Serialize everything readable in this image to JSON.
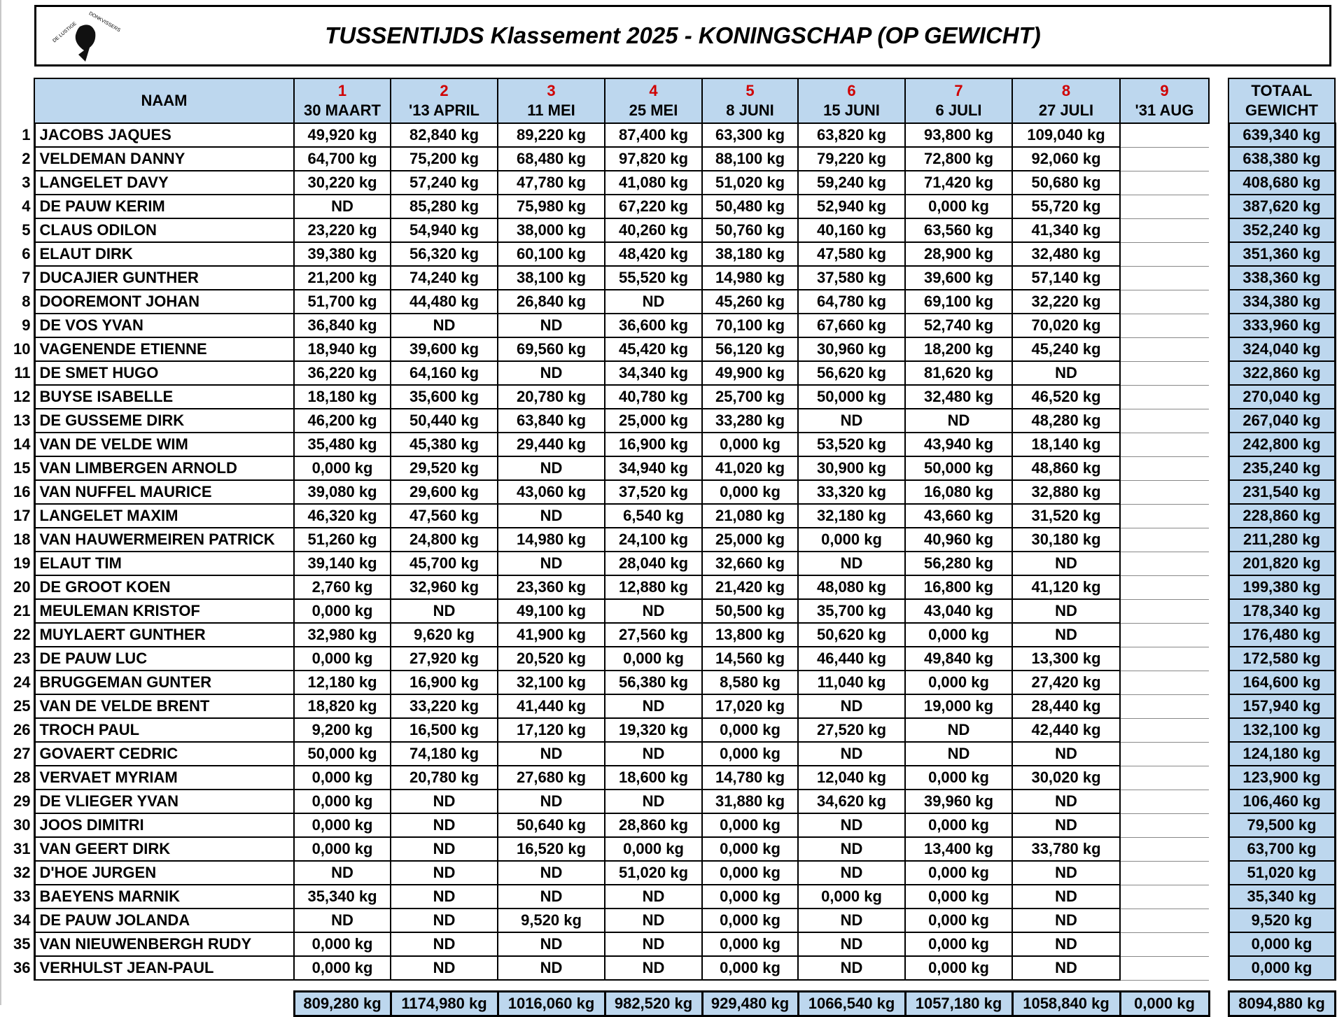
{
  "title": "TUSSENTIJDS Klassement 2025 - KONINGSCHAP (OP GEWICHT)",
  "logo_text": "DE LUSTIGE DONKVISSERS",
  "colors": {
    "header_bg": "#bdd7ee",
    "round_number": "#d00000"
  },
  "header": {
    "name": "NAAM",
    "rounds": [
      {
        "num": "1",
        "date": "30 MAART"
      },
      {
        "num": "2",
        "date": "'13 APRIL"
      },
      {
        "num": "3",
        "date": "11 MEI"
      },
      {
        "num": "4",
        "date": "25 MEI"
      },
      {
        "num": "5",
        "date": "8 JUNI"
      },
      {
        "num": "6",
        "date": "15 JUNI"
      },
      {
        "num": "7",
        "date": "6 JULI"
      },
      {
        "num": "8",
        "date": "27 JULI"
      },
      {
        "num": "9",
        "date": "'31 AUG"
      }
    ],
    "total_line1": "TOTAAL",
    "total_line2": "GEWICHT"
  },
  "rows": [
    [
      "1",
      "JACOBS JAQUES",
      "49,920 kg",
      "82,840 kg",
      "89,220 kg",
      "87,400 kg",
      "63,300 kg",
      "63,820 kg",
      "93,800 kg",
      "109,040 kg",
      "",
      "639,340 kg"
    ],
    [
      "2",
      "VELDEMAN DANNY",
      "64,700 kg",
      "75,200 kg",
      "68,480 kg",
      "97,820 kg",
      "88,100 kg",
      "79,220 kg",
      "72,800 kg",
      "92,060 kg",
      "",
      "638,380 kg"
    ],
    [
      "3",
      "LANGELET DAVY",
      "30,220 kg",
      "57,240 kg",
      "47,780 kg",
      "41,080 kg",
      "51,020 kg",
      "59,240 kg",
      "71,420 kg",
      "50,680 kg",
      "",
      "408,680 kg"
    ],
    [
      "4",
      "DE PAUW KERIM",
      "ND",
      "85,280 kg",
      "75,980 kg",
      "67,220 kg",
      "50,480 kg",
      "52,940 kg",
      "0,000 kg",
      "55,720 kg",
      "",
      "387,620 kg"
    ],
    [
      "5",
      "CLAUS ODILON",
      "23,220 kg",
      "54,940 kg",
      "38,000 kg",
      "40,260 kg",
      "50,760 kg",
      "40,160 kg",
      "63,560 kg",
      "41,340 kg",
      "",
      "352,240 kg"
    ],
    [
      "6",
      "ELAUT DIRK",
      "39,380 kg",
      "56,320 kg",
      "60,100 kg",
      "48,420 kg",
      "38,180 kg",
      "47,580 kg",
      "28,900 kg",
      "32,480 kg",
      "",
      "351,360 kg"
    ],
    [
      "7",
      "DUCAJIER GUNTHER",
      "21,200 kg",
      "74,240 kg",
      "38,100 kg",
      "55,520 kg",
      "14,980 kg",
      "37,580 kg",
      "39,600 kg",
      "57,140 kg",
      "",
      "338,360 kg"
    ],
    [
      "8",
      "DOOREMONT JOHAN",
      "51,700 kg",
      "44,480 kg",
      "26,840 kg",
      "ND",
      "45,260 kg",
      "64,780 kg",
      "69,100 kg",
      "32,220 kg",
      "",
      "334,380 kg"
    ],
    [
      "9",
      "DE VOS YVAN",
      "36,840 kg",
      "ND",
      "ND",
      "36,600 kg",
      "70,100 kg",
      "67,660 kg",
      "52,740 kg",
      "70,020 kg",
      "",
      "333,960 kg"
    ],
    [
      "10",
      "VAGENENDE ETIENNE",
      "18,940 kg",
      "39,600 kg",
      "69,560 kg",
      "45,420 kg",
      "56,120 kg",
      "30,960 kg",
      "18,200 kg",
      "45,240 kg",
      "",
      "324,040 kg"
    ],
    [
      "11",
      "DE SMET HUGO",
      "36,220 kg",
      "64,160 kg",
      "ND",
      "34,340 kg",
      "49,900 kg",
      "56,620 kg",
      "81,620 kg",
      "ND",
      "",
      "322,860 kg"
    ],
    [
      "12",
      "BUYSE ISABELLE",
      "18,180 kg",
      "35,600 kg",
      "20,780 kg",
      "40,780 kg",
      "25,700 kg",
      "50,000 kg",
      "32,480 kg",
      "46,520 kg",
      "",
      "270,040 kg"
    ],
    [
      "13",
      "DE GUSSEME DIRK",
      "46,200 kg",
      "50,440 kg",
      "63,840 kg",
      "25,000 kg",
      "33,280 kg",
      "ND",
      "ND",
      "48,280 kg",
      "",
      "267,040 kg"
    ],
    [
      "14",
      "VAN DE VELDE WIM",
      "35,480 kg",
      "45,380 kg",
      "29,440 kg",
      "16,900 kg",
      "0,000 kg",
      "53,520 kg",
      "43,940 kg",
      "18,140 kg",
      "",
      "242,800 kg"
    ],
    [
      "15",
      "VAN LIMBERGEN ARNOLD",
      "0,000 kg",
      "29,520 kg",
      "ND",
      "34,940 kg",
      "41,020 kg",
      "30,900 kg",
      "50,000 kg",
      "48,860 kg",
      "",
      "235,240 kg"
    ],
    [
      "16",
      "VAN NUFFEL MAURICE",
      "39,080 kg",
      "29,600 kg",
      "43,060 kg",
      "37,520 kg",
      "0,000 kg",
      "33,320 kg",
      "16,080 kg",
      "32,880 kg",
      "",
      "231,540 kg"
    ],
    [
      "17",
      "LANGELET MAXIM",
      "46,320 kg",
      "47,560 kg",
      "ND",
      "6,540 kg",
      "21,080 kg",
      "32,180 kg",
      "43,660 kg",
      "31,520 kg",
      "",
      "228,860 kg"
    ],
    [
      "18",
      "VAN HAUWERMEIREN PATRICK",
      "51,260 kg",
      "24,800 kg",
      "14,980 kg",
      "24,100 kg",
      "25,000 kg",
      "0,000 kg",
      "40,960 kg",
      "30,180 kg",
      "",
      "211,280 kg"
    ],
    [
      "19",
      "ELAUT TIM",
      "39,140 kg",
      "45,700 kg",
      "ND",
      "28,040 kg",
      "32,660 kg",
      "ND",
      "56,280 kg",
      "ND",
      "",
      "201,820 kg"
    ],
    [
      "20",
      "DE GROOT KOEN",
      "2,760 kg",
      "32,960 kg",
      "23,360 kg",
      "12,880 kg",
      "21,420 kg",
      "48,080 kg",
      "16,800 kg",
      "41,120 kg",
      "",
      "199,380 kg"
    ],
    [
      "21",
      "MEULEMAN KRISTOF",
      "0,000 kg",
      "ND",
      "49,100 kg",
      "ND",
      "50,500 kg",
      "35,700 kg",
      "43,040 kg",
      "ND",
      "",
      "178,340 kg"
    ],
    [
      "22",
      "MUYLAERT GUNTHER",
      "32,980 kg",
      "9,620 kg",
      "41,900 kg",
      "27,560 kg",
      "13,800 kg",
      "50,620 kg",
      "0,000 kg",
      "ND",
      "",
      "176,480 kg"
    ],
    [
      "23",
      "DE PAUW LUC",
      "0,000 kg",
      "27,920 kg",
      "20,520 kg",
      "0,000 kg",
      "14,560 kg",
      "46,440 kg",
      "49,840 kg",
      "13,300 kg",
      "",
      "172,580 kg"
    ],
    [
      "24",
      "BRUGGEMAN GUNTER",
      "12,180 kg",
      "16,900 kg",
      "32,100 kg",
      "56,380 kg",
      "8,580 kg",
      "11,040 kg",
      "0,000 kg",
      "27,420 kg",
      "",
      "164,600 kg"
    ],
    [
      "25",
      "VAN DE VELDE BRENT",
      "18,820 kg",
      "33,220 kg",
      "41,440 kg",
      "ND",
      "17,020 kg",
      "ND",
      "19,000 kg",
      "28,440 kg",
      "",
      "157,940 kg"
    ],
    [
      "26",
      "TROCH PAUL",
      "9,200 kg",
      "16,500 kg",
      "17,120 kg",
      "19,320 kg",
      "0,000 kg",
      "27,520 kg",
      "ND",
      "42,440 kg",
      "",
      "132,100 kg"
    ],
    [
      "27",
      "GOVAERT CEDRIC",
      "50,000 kg",
      "74,180 kg",
      "ND",
      "ND",
      "0,000 kg",
      "ND",
      "ND",
      "ND",
      "",
      "124,180 kg"
    ],
    [
      "28",
      "VERVAET MYRIAM",
      "0,000 kg",
      "20,780 kg",
      "27,680 kg",
      "18,600 kg",
      "14,780 kg",
      "12,040 kg",
      "0,000 kg",
      "30,020 kg",
      "",
      "123,900 kg"
    ],
    [
      "29",
      "DE VLIEGER YVAN",
      "0,000 kg",
      "ND",
      "ND",
      "ND",
      "31,880 kg",
      "34,620 kg",
      "39,960 kg",
      "ND",
      "",
      "106,460 kg"
    ],
    [
      "30",
      "JOOS DIMITRI",
      "0,000 kg",
      "ND",
      "50,640 kg",
      "28,860 kg",
      "0,000 kg",
      "ND",
      "0,000 kg",
      "ND",
      "",
      "79,500 kg"
    ],
    [
      "31",
      "VAN GEERT DIRK",
      "0,000 kg",
      "ND",
      "16,520 kg",
      "0,000 kg",
      "0,000 kg",
      "ND",
      "13,400 kg",
      "33,780 kg",
      "",
      "63,700 kg"
    ],
    [
      "32",
      "D'HOE JURGEN",
      "ND",
      "ND",
      "ND",
      "51,020 kg",
      "0,000 kg",
      "ND",
      "0,000 kg",
      "ND",
      "",
      "51,020 kg"
    ],
    [
      "33",
      "BAEYENS MARNIK",
      "35,340 kg",
      "ND",
      "ND",
      "ND",
      "0,000 kg",
      "0,000 kg",
      "0,000 kg",
      "ND",
      "",
      "35,340 kg"
    ],
    [
      "34",
      "DE PAUW JOLANDA",
      "ND",
      "ND",
      "9,520 kg",
      "ND",
      "0,000 kg",
      "ND",
      "0,000 kg",
      "ND",
      "",
      "9,520 kg"
    ],
    [
      "35",
      "VAN NIEUWENBERGH RUDY",
      "0,000 kg",
      "ND",
      "ND",
      "ND",
      "0,000 kg",
      "ND",
      "0,000 kg",
      "ND",
      "",
      "0,000 kg"
    ],
    [
      "36",
      "VERHULST JEAN-PAUL",
      "0,000 kg",
      "ND",
      "ND",
      "ND",
      "0,000 kg",
      "ND",
      "0,000 kg",
      "ND",
      "",
      "0,000 kg"
    ]
  ],
  "totals": [
    "809,280 kg",
    "1174,980 kg",
    "1016,060 kg",
    "982,520 kg",
    "929,480 kg",
    "1066,540 kg",
    "1057,180 kg",
    "1058,840 kg",
    "0,000 kg"
  ],
  "grand_total": "8094,880 kg"
}
